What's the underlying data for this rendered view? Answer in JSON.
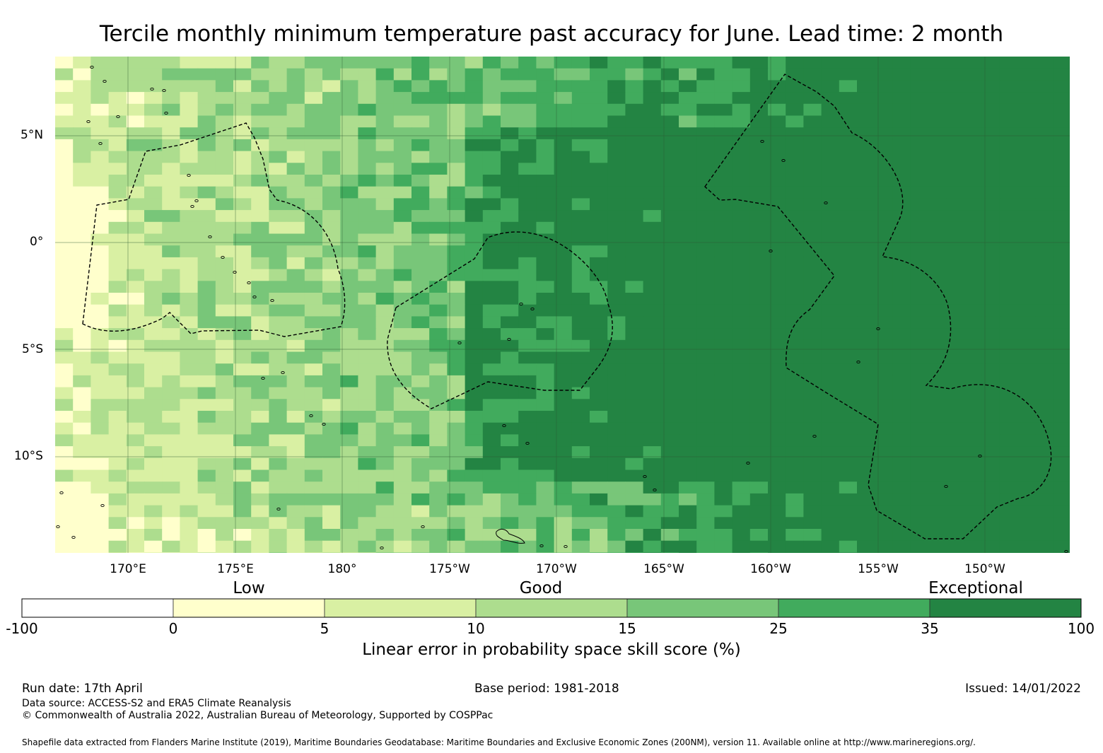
{
  "title": "Tercile monthly minimum temperature past accuracy for June. Lead time: 2 month",
  "map": {
    "lat_labels": [
      "5°N",
      "0°",
      "5°S",
      "10°S"
    ],
    "lon_labels": [
      "170°E",
      "175°E",
      "180°",
      "175°W",
      "170°W",
      "165°W",
      "160°W",
      "155°W",
      "150°W"
    ],
    "field_colors": [
      "#ffffcc",
      "#d9f0a3",
      "#addd8e",
      "#78c679",
      "#41ab5d",
      "#238443"
    ],
    "grid_line_color": "#2d5a32",
    "boundary_style": "dashed black"
  },
  "colorbar": {
    "categories": [
      "Low",
      "Good",
      "Exceptional"
    ],
    "ticks": [
      "-100",
      "0",
      "5",
      "10",
      "15",
      "25",
      "35",
      "100"
    ],
    "colors": [
      "#ffffff",
      "#ffffcc",
      "#d9f0a3",
      "#addd8e",
      "#78c679",
      "#41ab5d",
      "#238443"
    ],
    "label": "Linear error in probability space skill score (%)"
  },
  "footer": {
    "run_date": "Run date: 17th April",
    "base_period": "Base period: 1981-2018",
    "issued": "Issued: 14/01/2022",
    "data_source": "Data source: ACCESS-S2 and ERA5 Climate Reanalysis",
    "copyright": "© Commonwealth of Australia 2022, Australian Bureau of Meteorology, Supported by COSPPac",
    "shapefile": "Shapefile data extracted from Flanders Marine Institute (2019), Maritime Boundaries Geodatabase: Maritime Boundaries and Exclusive Economic Zones (200NM), version 11. Available online at http://www.marineregions.org/."
  }
}
